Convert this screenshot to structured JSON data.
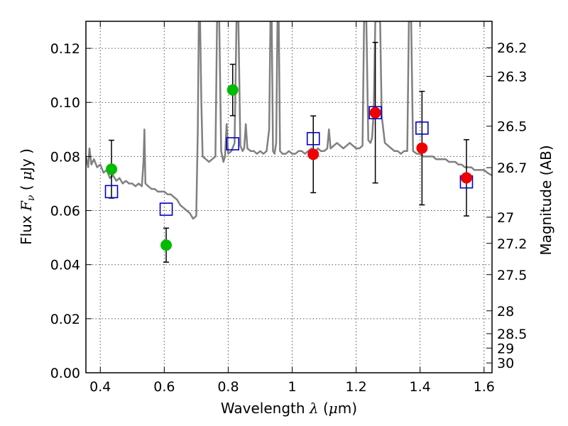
{
  "chart_data": {
    "type": "scatter",
    "xlabel": "Wavelength",
    "xlabel_symbol": "λ",
    "xlabel_unit_open": " (",
    "xlabel_unit_mu": "μ",
    "xlabel_unit_rest": "m)",
    "ylabel": "Flux",
    "ylabel_symbol": "F",
    "ylabel_symbol_sub": "ν",
    "ylabel_unit_open": "  ( ",
    "ylabel_unit_mu": "μ",
    "ylabel_unit_rest": "Jy )",
    "y2label": "Magnitude (AB)",
    "xlim": [
      0.355,
      1.625
    ],
    "ylim": [
      0.0,
      0.13
    ],
    "grid": true,
    "x_ticks": [
      0.4,
      0.6,
      0.8,
      1.0,
      1.2,
      1.4,
      1.6
    ],
    "x_tick_labels": [
      "0.4",
      "0.6",
      "0.8",
      "1",
      "1.2",
      "1.4",
      "1.6"
    ],
    "y_ticks": [
      0.0,
      0.02,
      0.04,
      0.06,
      0.08,
      0.1,
      0.12
    ],
    "y_tick_labels": [
      "0.00",
      "0.02",
      "0.04",
      "0.06",
      "0.08",
      "0.10",
      "0.12"
    ],
    "y2_ticks": [
      26.2,
      26.3,
      26.5,
      26.7,
      27,
      27.2,
      27.5,
      28,
      28.5,
      29,
      30
    ],
    "y2_tick_labels": [
      "26.2",
      "26.3",
      "26.5",
      "26.7",
      "27",
      "27.2",
      "27.5",
      "28",
      "28.5",
      "29",
      "30"
    ],
    "colors": {
      "sed": "#808080",
      "green": "#00bb00",
      "red": "#ee0000",
      "model": "#0000cc",
      "errorbar": "#000000",
      "grid": "#555555"
    },
    "series": [
      {
        "marker": "circle",
        "color": "green",
        "points": [
          {
            "x": 0.435,
            "y": 0.0753,
            "err": 0.0107
          },
          {
            "x": 0.606,
            "y": 0.0472,
            "err": 0.0063
          },
          {
            "x": 0.814,
            "y": 0.1046,
            "err": 0.0095
          }
        ]
      },
      {
        "marker": "circle",
        "color": "red",
        "points": [
          {
            "x": 1.066,
            "y": 0.0808,
            "err": 0.0142
          },
          {
            "x": 1.26,
            "y": 0.0962,
            "err": 0.026
          },
          {
            "x": 1.406,
            "y": 0.0831,
            "err": 0.021
          },
          {
            "x": 1.545,
            "y": 0.0721,
            "err": 0.0141
          }
        ]
      },
      {
        "marker": "open-square",
        "color": "model",
        "points": [
          {
            "x": 0.435,
            "y": 0.067
          },
          {
            "x": 0.606,
            "y": 0.0605
          },
          {
            "x": 0.814,
            "y": 0.0847
          },
          {
            "x": 1.066,
            "y": 0.0866
          },
          {
            "x": 1.26,
            "y": 0.0962
          },
          {
            "x": 1.406,
            "y": 0.0905
          },
          {
            "x": 1.545,
            "y": 0.0706
          }
        ]
      },
      {
        "marker": "line",
        "color": "sed",
        "points": [
          [
            0.355,
            0.08
          ],
          [
            0.362,
            0.076
          ],
          [
            0.366,
            0.083
          ],
          [
            0.372,
            0.077
          ],
          [
            0.38,
            0.079
          ],
          [
            0.39,
            0.076
          ],
          [
            0.4,
            0.077
          ],
          [
            0.41,
            0.074
          ],
          [
            0.42,
            0.075
          ],
          [
            0.43,
            0.072
          ],
          [
            0.44,
            0.073
          ],
          [
            0.45,
            0.071
          ],
          [
            0.46,
            0.072
          ],
          [
            0.47,
            0.07
          ],
          [
            0.48,
            0.071
          ],
          [
            0.49,
            0.07
          ],
          [
            0.5,
            0.07
          ],
          [
            0.51,
            0.069
          ],
          [
            0.52,
            0.07
          ],
          [
            0.53,
            0.069
          ],
          [
            0.535,
            0.078
          ],
          [
            0.538,
            0.09
          ],
          [
            0.541,
            0.07
          ],
          [
            0.55,
            0.069
          ],
          [
            0.56,
            0.068
          ],
          [
            0.57,
            0.068
          ],
          [
            0.58,
            0.067
          ],
          [
            0.59,
            0.067
          ],
          [
            0.6,
            0.067
          ],
          [
            0.61,
            0.066
          ],
          [
            0.62,
            0.066
          ],
          [
            0.63,
            0.065
          ],
          [
            0.64,
            0.064
          ],
          [
            0.65,
            0.062
          ],
          [
            0.66,
            0.061
          ],
          [
            0.67,
            0.06
          ],
          [
            0.68,
            0.059
          ],
          [
            0.69,
            0.057
          ],
          [
            0.7,
            0.058
          ],
          [
            0.705,
            0.09
          ],
          [
            0.708,
            0.13
          ],
          [
            0.712,
            0.13
          ],
          [
            0.716,
            0.1
          ],
          [
            0.72,
            0.08
          ],
          [
            0.73,
            0.079
          ],
          [
            0.74,
            0.078
          ],
          [
            0.75,
            0.079
          ],
          [
            0.76,
            0.08
          ],
          [
            0.765,
            0.13
          ],
          [
            0.772,
            0.13
          ],
          [
            0.778,
            0.082
          ],
          [
            0.785,
            0.078
          ],
          [
            0.79,
            0.08
          ],
          [
            0.795,
            0.092
          ],
          [
            0.8,
            0.081
          ],
          [
            0.81,
            0.082
          ],
          [
            0.82,
            0.085
          ],
          [
            0.826,
            0.13
          ],
          [
            0.832,
            0.13
          ],
          [
            0.838,
            0.084
          ],
          [
            0.845,
            0.082
          ],
          [
            0.85,
            0.083
          ],
          [
            0.855,
            0.092
          ],
          [
            0.86,
            0.083
          ],
          [
            0.87,
            0.082
          ],
          [
            0.88,
            0.082
          ],
          [
            0.89,
            0.081
          ],
          [
            0.9,
            0.082
          ],
          [
            0.91,
            0.081
          ],
          [
            0.92,
            0.082
          ],
          [
            0.928,
            0.09
          ],
          [
            0.932,
            0.13
          ],
          [
            0.936,
            0.13
          ],
          [
            0.94,
            0.082
          ],
          [
            0.945,
            0.081
          ],
          [
            0.95,
            0.085
          ],
          [
            0.954,
            0.13
          ],
          [
            0.958,
            0.13
          ],
          [
            0.962,
            0.082
          ],
          [
            0.97,
            0.081
          ],
          [
            0.98,
            0.081
          ],
          [
            0.99,
            0.082
          ],
          [
            1.0,
            0.081
          ],
          [
            1.01,
            0.081
          ],
          [
            1.02,
            0.082
          ],
          [
            1.03,
            0.082
          ],
          [
            1.04,
            0.081
          ],
          [
            1.05,
            0.082
          ],
          [
            1.06,
            0.083
          ],
          [
            1.07,
            0.081
          ],
          [
            1.08,
            0.083
          ],
          [
            1.09,
            0.082
          ],
          [
            1.1,
            0.082
          ],
          [
            1.11,
            0.083
          ],
          [
            1.115,
            0.09
          ],
          [
            1.12,
            0.083
          ],
          [
            1.13,
            0.084
          ],
          [
            1.14,
            0.085
          ],
          [
            1.15,
            0.084
          ],
          [
            1.16,
            0.083
          ],
          [
            1.17,
            0.084
          ],
          [
            1.18,
            0.085
          ],
          [
            1.19,
            0.084
          ],
          [
            1.2,
            0.083
          ],
          [
            1.21,
            0.083
          ],
          [
            1.22,
            0.084
          ],
          [
            1.225,
            0.13
          ],
          [
            1.232,
            0.13
          ],
          [
            1.238,
            0.086
          ],
          [
            1.245,
            0.085
          ],
          [
            1.25,
            0.087
          ],
          [
            1.255,
            0.097
          ],
          [
            1.26,
            0.13
          ],
          [
            1.27,
            0.13
          ],
          [
            1.275,
            0.13
          ],
          [
            1.28,
            0.095
          ],
          [
            1.29,
            0.085
          ],
          [
            1.3,
            0.084
          ],
          [
            1.31,
            0.083
          ],
          [
            1.32,
            0.082
          ],
          [
            1.33,
            0.082
          ],
          [
            1.34,
            0.081
          ],
          [
            1.35,
            0.082
          ],
          [
            1.36,
            0.082
          ],
          [
            1.365,
            0.13
          ],
          [
            1.372,
            0.13
          ],
          [
            1.378,
            0.082
          ],
          [
            1.39,
            0.081
          ],
          [
            1.4,
            0.081
          ],
          [
            1.41,
            0.08
          ],
          [
            1.42,
            0.08
          ],
          [
            1.43,
            0.08
          ],
          [
            1.44,
            0.08
          ],
          [
            1.45,
            0.079
          ],
          [
            1.46,
            0.079
          ],
          [
            1.47,
            0.079
          ],
          [
            1.48,
            0.079
          ],
          [
            1.49,
            0.078
          ],
          [
            1.5,
            0.078
          ],
          [
            1.51,
            0.078
          ],
          [
            1.52,
            0.077
          ],
          [
            1.53,
            0.077
          ],
          [
            1.54,
            0.076
          ],
          [
            1.55,
            0.076
          ],
          [
            1.56,
            0.076
          ],
          [
            1.57,
            0.075
          ],
          [
            1.58,
            0.075
          ],
          [
            1.59,
            0.075
          ],
          [
            1.6,
            0.075
          ],
          [
            1.61,
            0.074
          ],
          [
            1.625,
            0.073
          ]
        ]
      }
    ]
  }
}
